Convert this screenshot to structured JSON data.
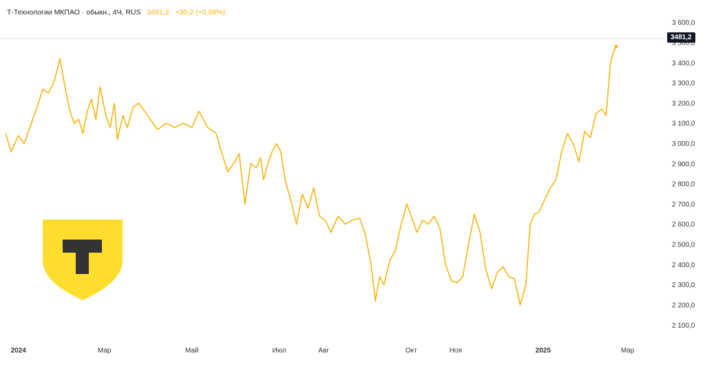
{
  "header": {
    "title": "Т-Технологии МКПАО · обыкн., 4Ч, RUS",
    "price": "3481,2",
    "change": "+30,2 (+0,88%)"
  },
  "price_tag": "3481,2",
  "colors": {
    "line": "#f6b40e",
    "logo_shield": "#ffdd2d",
    "logo_letter": "#333333",
    "text": "#222222",
    "axis_text": "#333333",
    "price_tag_bg": "#131722"
  },
  "logo": {
    "letter": "T",
    "icon": "tinkoff-shield-logo"
  },
  "chart_data": {
    "type": "line",
    "title": "Т-Технологии МКПАО · обыкн., 4Ч, RUS",
    "xlabel": "",
    "ylabel": "",
    "ylim": [
      2060,
      3650
    ],
    "grid": false,
    "x_ticks": [
      "2024",
      "Мар",
      "Май",
      "Июл",
      "Авг",
      "Окт",
      "Ноя",
      "2025",
      "Мар"
    ],
    "x_tick_dates": [
      "2024-01-01",
      "2024-03-01",
      "2024-05-01",
      "2024-07-01",
      "2024-08-01",
      "2024-10-01",
      "2024-11-01",
      "2025-01-01",
      "2025-03-01"
    ],
    "y_ticks": [
      "2 100,0",
      "2 200,0",
      "2 300,0",
      "2 400,0",
      "2 500,0",
      "2 600,0",
      "2 700,0",
      "2 800,0",
      "2 900,0",
      "3 000,0",
      "3 100,0",
      "3 200,0",
      "3 300,0",
      "3 400,0",
      "3 500,0",
      "3 600,0"
    ],
    "y_tick_values": [
      2100,
      2200,
      2300,
      2400,
      2500,
      2600,
      2700,
      2800,
      2900,
      3000,
      3100,
      3200,
      3300,
      3400,
      3500,
      3600
    ],
    "last_value": 3481.2,
    "series": [
      {
        "x": [
          "2023-12-23",
          "2023-12-27",
          "2024-01-01",
          "2024-01-05",
          "2024-01-09",
          "2024-01-14",
          "2024-01-18",
          "2024-01-22",
          "2024-01-26",
          "2024-01-30",
          "2024-02-03",
          "2024-02-06",
          "2024-02-09",
          "2024-02-12",
          "2024-02-15",
          "2024-02-18",
          "2024-02-21",
          "2024-02-24",
          "2024-02-27",
          "2024-03-02",
          "2024-03-05",
          "2024-03-08",
          "2024-03-10",
          "2024-03-14",
          "2024-03-17",
          "2024-03-21",
          "2024-03-25",
          "2024-03-29",
          "2024-04-02",
          "2024-04-07",
          "2024-04-13",
          "2024-04-19",
          "2024-04-25",
          "2024-05-01",
          "2024-05-06",
          "2024-05-12",
          "2024-05-18",
          "2024-05-22",
          "2024-05-26",
          "2024-05-30",
          "2024-06-03",
          "2024-06-07",
          "2024-06-11",
          "2024-06-15",
          "2024-06-18",
          "2024-06-20",
          "2024-06-23",
          "2024-06-26",
          "2024-06-29",
          "2024-07-02",
          "2024-07-05",
          "2024-07-09",
          "2024-07-13",
          "2024-07-17",
          "2024-07-21",
          "2024-07-25",
          "2024-07-29",
          "2024-08-02",
          "2024-08-06",
          "2024-08-11",
          "2024-08-16",
          "2024-08-21",
          "2024-08-26",
          "2024-08-30",
          "2024-09-03",
          "2024-09-06",
          "2024-09-09",
          "2024-09-12",
          "2024-09-16",
          "2024-09-20",
          "2024-09-24",
          "2024-09-28",
          "2024-10-01",
          "2024-10-05",
          "2024-10-09",
          "2024-10-13",
          "2024-10-17",
          "2024-10-21",
          "2024-10-25",
          "2024-10-29",
          "2024-11-02",
          "2024-11-06",
          "2024-11-10",
          "2024-11-14",
          "2024-11-18",
          "2024-11-22",
          "2024-11-26",
          "2024-11-30",
          "2024-12-04",
          "2024-12-08",
          "2024-12-12",
          "2024-12-16",
          "2024-12-18",
          "2024-12-20",
          "2024-12-23",
          "2024-12-26",
          "2024-12-29",
          "2025-01-02",
          "2025-01-06",
          "2025-01-10",
          "2025-01-14",
          "2025-01-18",
          "2025-01-22",
          "2025-01-26",
          "2025-01-30",
          "2025-02-03",
          "2025-02-07",
          "2025-02-11",
          "2025-02-14",
          "2025-02-17",
          "2025-02-19",
          "2025-02-21"
        ],
        "values": [
          3050,
          2960,
          3040,
          3000,
          3080,
          3180,
          3270,
          3250,
          3310,
          3420,
          3260,
          3160,
          3100,
          3120,
          3050,
          3160,
          3220,
          3120,
          3280,
          3140,
          3080,
          3200,
          3020,
          3140,
          3080,
          3180,
          3200,
          3160,
          3120,
          3070,
          3100,
          3080,
          3100,
          3080,
          3160,
          3080,
          3050,
          2950,
          2860,
          2900,
          2950,
          2700,
          2900,
          2880,
          2930,
          2820,
          2900,
          2960,
          3000,
          2960,
          2820,
          2720,
          2600,
          2750,
          2680,
          2780,
          2640,
          2620,
          2560,
          2640,
          2600,
          2620,
          2630,
          2550,
          2400,
          2220,
          2340,
          2300,
          2420,
          2470,
          2600,
          2700,
          2640,
          2560,
          2620,
          2600,
          2640,
          2580,
          2400,
          2320,
          2310,
          2340,
          2500,
          2650,
          2560,
          2380,
          2280,
          2360,
          2390,
          2340,
          2330,
          2200,
          2250,
          2300,
          2600,
          2650,
          2660,
          2720,
          2780,
          2820,
          2960,
          3050,
          3000,
          2910,
          3060,
          3030,
          3150,
          3170,
          3140,
          3400,
          3450,
          3481.2
        ]
      }
    ]
  }
}
